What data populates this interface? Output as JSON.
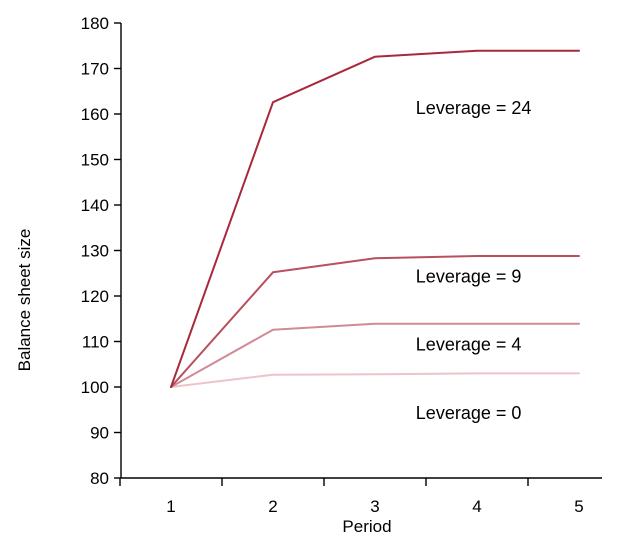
{
  "chart_data": {
    "type": "line",
    "title": "",
    "xlabel": "Period",
    "ylabel": "Balance sheet size",
    "x": [
      1,
      2,
      3,
      4,
      5
    ],
    "xlim": [
      0.5,
      5.5
    ],
    "ylim": [
      80,
      180
    ],
    "x_ticks": [
      "1",
      "2",
      "3",
      "4",
      "5"
    ],
    "y_ticks": [
      "80",
      "90",
      "100",
      "110",
      "120",
      "130",
      "140",
      "150",
      "160",
      "170",
      "180"
    ],
    "grid": false,
    "series": [
      {
        "name": "Leverage = 24",
        "values": [
          100,
          162.6,
          172.6,
          173.9,
          173.9
        ],
        "color": "#a8283c"
      },
      {
        "name": "Leverage = 9",
        "values": [
          100,
          125.2,
          128.3,
          128.8,
          128.8
        ],
        "color": "#b8505e"
      },
      {
        "name": "Leverage = 4",
        "values": [
          100,
          112.6,
          113.9,
          113.9,
          113.9
        ],
        "color": "#d28a96"
      },
      {
        "name": "Leverage = 0",
        "values": [
          100,
          102.7,
          102.8,
          103.0,
          103.0
        ],
        "color": "#ecc4ca"
      }
    ],
    "annotations": [
      {
        "text": "Leverage = 24",
        "x": 3.4,
        "y": 160
      },
      {
        "text": "Leverage = 9",
        "x": 3.4,
        "y": 123
      },
      {
        "text": "Leverage = 4",
        "x": 3.4,
        "y": 108
      },
      {
        "text": "Leverage = 0",
        "x": 3.4,
        "y": 93
      }
    ]
  }
}
